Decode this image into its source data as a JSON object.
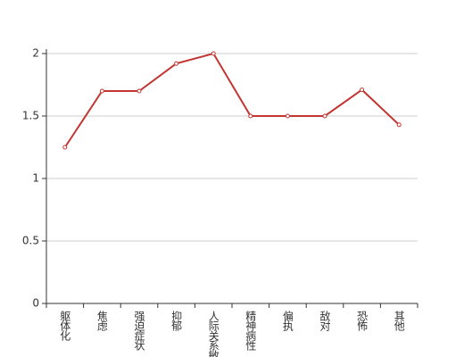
{
  "chart_data": {
    "type": "line",
    "categories": [
      "躯体化",
      "焦虑",
      "强迫症状",
      "抑郁",
      "人际关系敏感",
      "精神病性",
      "偏执",
      "敌对",
      "恐怖",
      "其他"
    ],
    "values": [
      1.25,
      1.7,
      1.7,
      1.92,
      2.0,
      1.5,
      1.5,
      1.5,
      1.71,
      1.43
    ],
    "color": "#c23531",
    "ylim": [
      0,
      2
    ],
    "yticks": [
      0,
      0.5,
      1,
      1.5,
      2
    ],
    "grid": true
  }
}
